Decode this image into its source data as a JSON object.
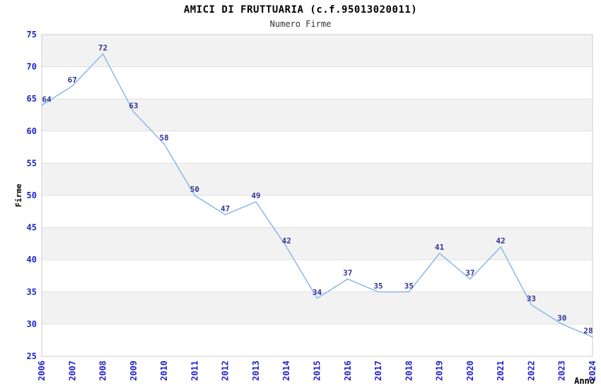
{
  "title": "AMICI DI FRUTTUARIA (c.f.95013020011)",
  "subtitle": "Numero Firme",
  "chart_data": {
    "type": "line",
    "title": "AMICI DI FRUTTUARIA (c.f.95013020011)",
    "subtitle": "Numero Firme",
    "xlabel": "Anno",
    "ylabel": "Firme",
    "x": [
      2006,
      2007,
      2008,
      2009,
      2010,
      2011,
      2012,
      2013,
      2014,
      2015,
      2016,
      2017,
      2018,
      2019,
      2020,
      2021,
      2022,
      2023,
      2024
    ],
    "values": [
      64,
      67,
      72,
      63,
      58,
      50,
      47,
      49,
      42,
      34,
      37,
      35,
      35,
      41,
      37,
      42,
      33,
      30,
      28
    ],
    "series_name": "Numero Firme",
    "ylim": [
      25,
      75
    ],
    "yticks": [
      25,
      30,
      35,
      40,
      45,
      50,
      55,
      60,
      65,
      70,
      75
    ],
    "grid": "horizontal",
    "alternating_bands": true,
    "legend": "none",
    "point_labels": true,
    "colors": {
      "line": "#8ab8e8",
      "tick_label": "#2222cc",
      "point_label": "#333399",
      "band": "#f2f2f2",
      "gridline": "#e0e0e0",
      "border": "#cccccc",
      "title": "#000000",
      "subtitle": "#333333",
      "axis_title": "#000000",
      "background": "#ffffff"
    }
  }
}
